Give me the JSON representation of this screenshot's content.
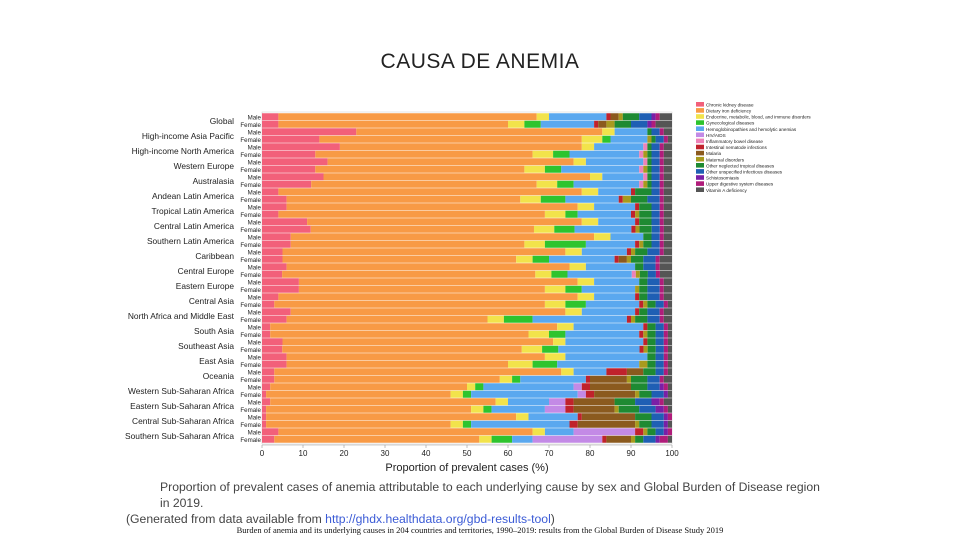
{
  "slide": {
    "title": "CAUSA DE ANEMIA",
    "caption_line1": "Proportion of prevalent cases of anemia attributable to each underlying cause by sex and Global Burden of Disease region in 2019.",
    "caption_line2_prefix": "(Generated from data available from ",
    "caption_link": "http://ghdx.healthdata.org/gbd-results-tool",
    "caption_line2_suffix": ")",
    "footer": "Burden of anemia and its underlying causes in 204 countries and territories, 1990–2019: results from the Global Burden of Disease Study 2019"
  },
  "chart_data": {
    "type": "bar",
    "orientation": "horizontal",
    "stacked": true,
    "xlabel": "Proportion of prevalent cases (%)",
    "xlim": [
      0,
      100
    ],
    "xticks": [
      0,
      10,
      20,
      30,
      40,
      50,
      60,
      70,
      80,
      90,
      100
    ],
    "sex_labels": [
      "Male",
      "Female"
    ],
    "legend_position": "right",
    "causes": [
      {
        "name": "Chronic kidney disease",
        "color": "#f2607a"
      },
      {
        "name": "Dietary iron deficiency",
        "color": "#f89a45"
      },
      {
        "name": "Endocrine, metabolic, blood, and immune disorders",
        "color": "#f2e34b"
      },
      {
        "name": "Gynecological diseases",
        "color": "#2ec42e"
      },
      {
        "name": "Hemoglobinopathies and hemolytic anemias",
        "color": "#5aa8ef"
      },
      {
        "name": "HIV/AIDS",
        "color": "#c38ae6"
      },
      {
        "name": "Inflammatory bowel disease",
        "color": "#ee82b8"
      },
      {
        "name": "Intestinal nematode infections",
        "color": "#c0222c"
      },
      {
        "name": "Malaria",
        "color": "#8b5a1e"
      },
      {
        "name": "Maternal disorders",
        "color": "#a89a1e"
      },
      {
        "name": "Other neglected tropical diseases",
        "color": "#1e8a32"
      },
      {
        "name": "Other unspecified infectious diseases",
        "color": "#1f5fb4"
      },
      {
        "name": "Schistosomiasis",
        "color": "#7a1fa6"
      },
      {
        "name": "Upper digestive system diseases",
        "color": "#b01c7a"
      },
      {
        "name": "Vitamin A deficiency",
        "color": "#555555"
      }
    ],
    "regions": [
      {
        "name": "Global",
        "male": [
          4,
          63,
          3,
          0,
          14,
          0,
          0,
          1,
          2,
          1,
          4,
          3,
          1,
          1,
          3
        ],
        "female": [
          4,
          56,
          4,
          4,
          13,
          0,
          0,
          1,
          2,
          2,
          4,
          4,
          1,
          1,
          4
        ]
      },
      {
        "name": "High-income Asia Pacific",
        "male": [
          23,
          60,
          3,
          0,
          8,
          0,
          0,
          0,
          0,
          0,
          1,
          2,
          0,
          1,
          2
        ],
        "female": [
          14,
          64,
          5,
          2,
          9,
          0,
          0,
          0,
          0,
          1,
          1,
          2,
          0,
          1,
          1
        ]
      },
      {
        "name": "High-income North America",
        "male": [
          19,
          59,
          3,
          0,
          12,
          0,
          1,
          0,
          0,
          0,
          1,
          2,
          0,
          1,
          2
        ],
        "female": [
          13,
          53,
          5,
          4,
          17,
          0,
          1,
          0,
          0,
          1,
          1,
          2,
          0,
          1,
          2
        ]
      },
      {
        "name": "Western Europe",
        "male": [
          16,
          60,
          3,
          0,
          14,
          0,
          1,
          0,
          0,
          0,
          1,
          2,
          0,
          1,
          2
        ],
        "female": [
          13,
          51,
          5,
          4,
          19,
          0,
          1,
          0,
          0,
          1,
          1,
          2,
          0,
          1,
          2
        ]
      },
      {
        "name": "Australasia",
        "male": [
          15,
          65,
          3,
          0,
          10,
          0,
          1,
          0,
          0,
          0,
          1,
          2,
          0,
          1,
          2
        ],
        "female": [
          12,
          55,
          5,
          4,
          16,
          0,
          1,
          0,
          0,
          1,
          1,
          2,
          0,
          1,
          2
        ]
      },
      {
        "name": "Andean Latin America",
        "male": [
          4,
          74,
          4,
          0,
          8,
          0,
          0,
          1,
          0,
          0,
          4,
          2,
          0,
          1,
          2
        ],
        "female": [
          6,
          57,
          5,
          6,
          13,
          0,
          0,
          1,
          0,
          2,
          4,
          3,
          0,
          1,
          2
        ]
      },
      {
        "name": "Tropical Latin America",
        "male": [
          6,
          71,
          4,
          0,
          10,
          0,
          0,
          1,
          0,
          0,
          3,
          2,
          0,
          1,
          2
        ],
        "female": [
          4,
          65,
          5,
          3,
          13,
          0,
          0,
          1,
          0,
          1,
          3,
          2,
          0,
          1,
          2
        ]
      },
      {
        "name": "Central Latin America",
        "male": [
          11,
          67,
          4,
          0,
          9,
          0,
          0,
          1,
          0,
          0,
          3,
          2,
          0,
          1,
          2
        ],
        "female": [
          12,
          55,
          5,
          5,
          14,
          0,
          0,
          1,
          0,
          1,
          3,
          2,
          0,
          1,
          2
        ]
      },
      {
        "name": "Southern Latin America",
        "male": [
          7,
          74,
          4,
          0,
          8,
          0,
          0,
          0,
          0,
          0,
          2,
          2,
          0,
          1,
          2
        ],
        "female": [
          7,
          57,
          5,
          10,
          12,
          0,
          0,
          1,
          0,
          1,
          2,
          2,
          0,
          1,
          2
        ]
      },
      {
        "name": "Caribbean",
        "male": [
          5,
          69,
          4,
          0,
          11,
          0,
          0,
          1,
          0,
          1,
          3,
          3,
          0,
          1,
          2
        ],
        "female": [
          5,
          57,
          4,
          4,
          16,
          0,
          0,
          1,
          2,
          1,
          3,
          3,
          0,
          1,
          3
        ]
      },
      {
        "name": "Central Europe",
        "male": [
          6,
          69,
          4,
          0,
          12,
          0,
          0,
          0,
          0,
          0,
          2,
          3,
          0,
          1,
          3
        ],
        "female": [
          5,
          63,
          4,
          4,
          16,
          0,
          1,
          0,
          0,
          1,
          2,
          2,
          0,
          1,
          3
        ]
      },
      {
        "name": "Eastern Europe",
        "male": [
          9,
          68,
          4,
          0,
          11,
          0,
          0,
          0,
          0,
          0,
          2,
          3,
          0,
          1,
          2
        ],
        "female": [
          9,
          60,
          5,
          4,
          13,
          0,
          0,
          0,
          0,
          1,
          2,
          3,
          0,
          1,
          2
        ]
      },
      {
        "name": "Central Asia",
        "male": [
          4,
          73,
          4,
          0,
          10,
          0,
          0,
          1,
          0,
          0,
          2,
          3,
          0,
          1,
          2
        ],
        "female": [
          3,
          66,
          5,
          5,
          13,
          0,
          0,
          1,
          0,
          1,
          2,
          2,
          0,
          1,
          1
        ]
      },
      {
        "name": "North Africa and Middle East",
        "male": [
          7,
          67,
          4,
          0,
          13,
          0,
          0,
          1,
          0,
          0,
          2,
          3,
          0,
          1,
          2
        ],
        "female": [
          6,
          49,
          4,
          7,
          23,
          0,
          0,
          1,
          0,
          1,
          3,
          3,
          0,
          1,
          2
        ]
      },
      {
        "name": "South Asia",
        "male": [
          2,
          70,
          4,
          0,
          17,
          0,
          0,
          1,
          0,
          0,
          2,
          2,
          0,
          1,
          1
        ],
        "female": [
          2,
          63,
          5,
          4,
          18,
          0,
          0,
          1,
          0,
          1,
          2,
          2,
          0,
          1,
          1
        ]
      },
      {
        "name": "Southeast Asia",
        "male": [
          5,
          66,
          3,
          0,
          19,
          0,
          0,
          1,
          0,
          0,
          2,
          2,
          0,
          1,
          1
        ],
        "female": [
          5,
          59,
          5,
          4,
          20,
          0,
          0,
          1,
          0,
          1,
          2,
          2,
          0,
          1,
          1
        ]
      },
      {
        "name": "East Asia",
        "male": [
          6,
          63,
          5,
          0,
          20,
          0,
          0,
          0,
          0,
          0,
          2,
          2,
          0,
          1,
          1
        ],
        "female": [
          6,
          54,
          6,
          6,
          20,
          0,
          0,
          0,
          0,
          2,
          2,
          2,
          0,
          1,
          1
        ]
      },
      {
        "name": "Oceania",
        "male": [
          3,
          70,
          3,
          0,
          8,
          0,
          0,
          5,
          4,
          0,
          3,
          2,
          0,
          1,
          1
        ],
        "female": [
          3,
          55,
          3,
          2,
          16,
          0,
          0,
          1,
          9,
          1,
          4,
          3,
          0,
          1,
          2
        ]
      },
      {
        "name": "Western Sub-Saharan Africa",
        "male": [
          2,
          48,
          2,
          2,
          22,
          2,
          0,
          2,
          10,
          0,
          4,
          3,
          1,
          1,
          1
        ],
        "female": [
          1,
          45,
          3,
          2,
          26,
          2,
          0,
          2,
          10,
          1,
          3,
          3,
          1,
          0,
          1
        ]
      },
      {
        "name": "Eastern Sub-Saharan Africa",
        "male": [
          2,
          55,
          3,
          0,
          10,
          4,
          0,
          2,
          10,
          0,
          5,
          4,
          2,
          1,
          2
        ],
        "female": [
          1,
          50,
          3,
          2,
          13,
          5,
          0,
          2,
          10,
          1,
          5,
          4,
          2,
          1,
          1
        ]
      },
      {
        "name": "Central Sub-Saharan Africa",
        "male": [
          1,
          61,
          3,
          0,
          12,
          0,
          0,
          1,
          13,
          0,
          4,
          3,
          1,
          1,
          0
        ],
        "female": [
          1,
          45,
          3,
          2,
          24,
          0,
          0,
          2,
          14,
          1,
          3,
          3,
          1,
          0,
          1
        ]
      },
      {
        "name": "Southern Sub-Saharan Africa",
        "male": [
          4,
          62,
          3,
          0,
          7,
          15,
          0,
          2,
          0,
          1,
          2,
          2,
          1,
          1,
          0
        ],
        "female": [
          3,
          50,
          3,
          5,
          5,
          17,
          0,
          1,
          6,
          1,
          2,
          3,
          1,
          2,
          1
        ]
      }
    ]
  }
}
